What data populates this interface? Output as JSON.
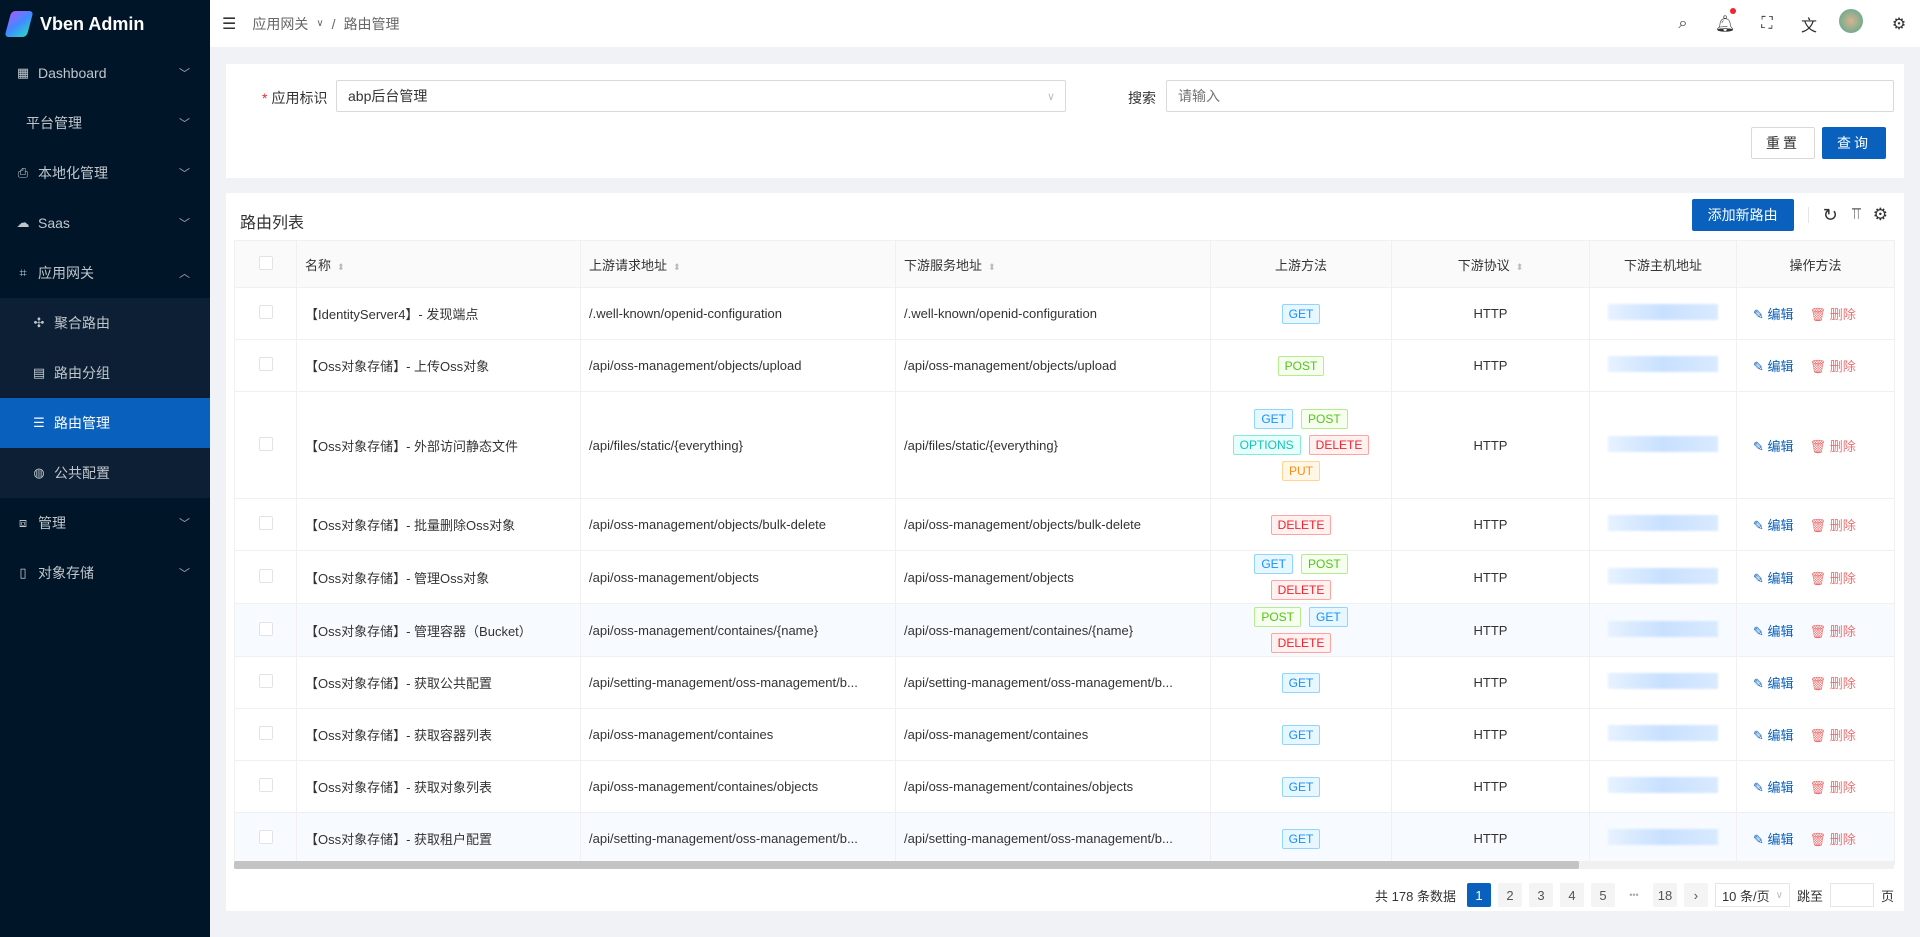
{
  "app": {
    "title": "Vben Admin"
  },
  "sidebar": {
    "items": [
      {
        "label": "Dashboard",
        "icon": "dashboard-icon",
        "glyph": "▦"
      },
      {
        "label": "平台管理",
        "icon": "",
        "glyph": ""
      },
      {
        "label": "本地化管理",
        "icon": "localization-icon",
        "glyph": "⎙"
      },
      {
        "label": "Saas",
        "icon": "cloud-icon",
        "glyph": "☁"
      },
      {
        "label": "应用网关",
        "icon": "gateway-icon",
        "glyph": "⌗",
        "expanded": true
      },
      {
        "label": "管理",
        "icon": "sliders-icon",
        "glyph": "⧈"
      },
      {
        "label": "对象存储",
        "icon": "file-icon",
        "glyph": "▯"
      }
    ],
    "submenu": [
      {
        "label": "聚合路由",
        "icon": "move-icon",
        "glyph": "✣"
      },
      {
        "label": "路由分组",
        "icon": "group-icon",
        "glyph": "▤"
      },
      {
        "label": "路由管理",
        "icon": "list-icon",
        "glyph": "☰",
        "active": true
      },
      {
        "label": "公共配置",
        "icon": "globe-icon",
        "glyph": "◍"
      }
    ]
  },
  "header": {
    "breadcrumb": [
      "应用网关",
      "路由管理"
    ]
  },
  "search": {
    "app_label": "应用标识",
    "app_value": "abp后台管理",
    "search_label": "搜索",
    "search_placeholder": "请输入",
    "reset": "重置",
    "query": "查询"
  },
  "table": {
    "title": "路由列表",
    "add_button": "添加新路由",
    "columns": [
      "名称",
      "上游请求地址",
      "下游服务地址",
      "上游方法",
      "下游协议",
      "下游主机地址",
      "操作方法"
    ],
    "edit": "编辑",
    "delete": "删除",
    "rows": [
      {
        "name": "【IdentityServer4】- 发现端点",
        "up": "/.well-known/openid-configuration",
        "down": "/.well-known/openid-configuration",
        "methods": [
          "GET"
        ],
        "proto": "HTTP"
      },
      {
        "name": "【Oss对象存储】- 上传Oss对象",
        "up": "/api/oss-management/objects/upload",
        "down": "/api/oss-management/objects/upload",
        "methods": [
          "POST"
        ],
        "proto": "HTTP"
      },
      {
        "name": "【Oss对象存储】- 外部访问静态文件",
        "up": "/api/files/static/{everything}",
        "down": "/api/files/static/{everything}",
        "methods": [
          "GET",
          "POST",
          "OPTIONS",
          "DELETE",
          "PUT"
        ],
        "proto": "HTTP"
      },
      {
        "name": "【Oss对象存储】- 批量删除Oss对象",
        "up": "/api/oss-management/objects/bulk-delete",
        "down": "/api/oss-management/objects/bulk-delete",
        "methods": [
          "DELETE"
        ],
        "proto": "HTTP"
      },
      {
        "name": "【Oss对象存储】- 管理Oss对象",
        "up": "/api/oss-management/objects",
        "down": "/api/oss-management/objects",
        "methods": [
          "GET",
          "POST",
          "DELETE"
        ],
        "proto": "HTTP"
      },
      {
        "name": "【Oss对象存储】- 管理容器（Bucket）",
        "up": "/api/oss-management/containes/{name}",
        "down": "/api/oss-management/containes/{name}",
        "methods": [
          "POST",
          "GET",
          "DELETE"
        ],
        "proto": "HTTP"
      },
      {
        "name": "【Oss对象存储】- 获取公共配置",
        "up": "/api/setting-management/oss-management/b...",
        "down": "/api/setting-management/oss-management/b...",
        "methods": [
          "GET"
        ],
        "proto": "HTTP"
      },
      {
        "name": "【Oss对象存储】- 获取容器列表",
        "up": "/api/oss-management/containes",
        "down": "/api/oss-management/containes",
        "methods": [
          "GET"
        ],
        "proto": "HTTP"
      },
      {
        "name": "【Oss对象存储】- 获取对象列表",
        "up": "/api/oss-management/containes/objects",
        "down": "/api/oss-management/containes/objects",
        "methods": [
          "GET"
        ],
        "proto": "HTTP"
      },
      {
        "name": "【Oss对象存储】- 获取租户配置",
        "up": "/api/setting-management/oss-management/b...",
        "down": "/api/setting-management/oss-management/b...",
        "methods": [
          "GET"
        ],
        "proto": "HTTP"
      }
    ]
  },
  "method_colors": {
    "GET": [
      "#e6f7ff",
      "#91d5ff",
      "#1890ff"
    ],
    "POST": [
      "#f6ffed",
      "#b7eb8f",
      "#52c41a"
    ],
    "OPTIONS": [
      "#e6fffb",
      "#87e8de",
      "#13c2c2"
    ],
    "DELETE": [
      "#fff1f0",
      "#ffa39e",
      "#f5222d"
    ],
    "PUT": [
      "#fff7e6",
      "#ffd591",
      "#fa8c16"
    ]
  },
  "pagination": {
    "total_text": "共 178 条数据",
    "pages": [
      "1",
      "2",
      "3",
      "4",
      "5"
    ],
    "ellipsis": "•••",
    "last": "18",
    "current": "1",
    "page_size": "10 条/页",
    "jump_label": "跳至",
    "page_suffix": "页"
  },
  "colors": {
    "sidebar": "#001628",
    "accent": "#0960bd"
  }
}
